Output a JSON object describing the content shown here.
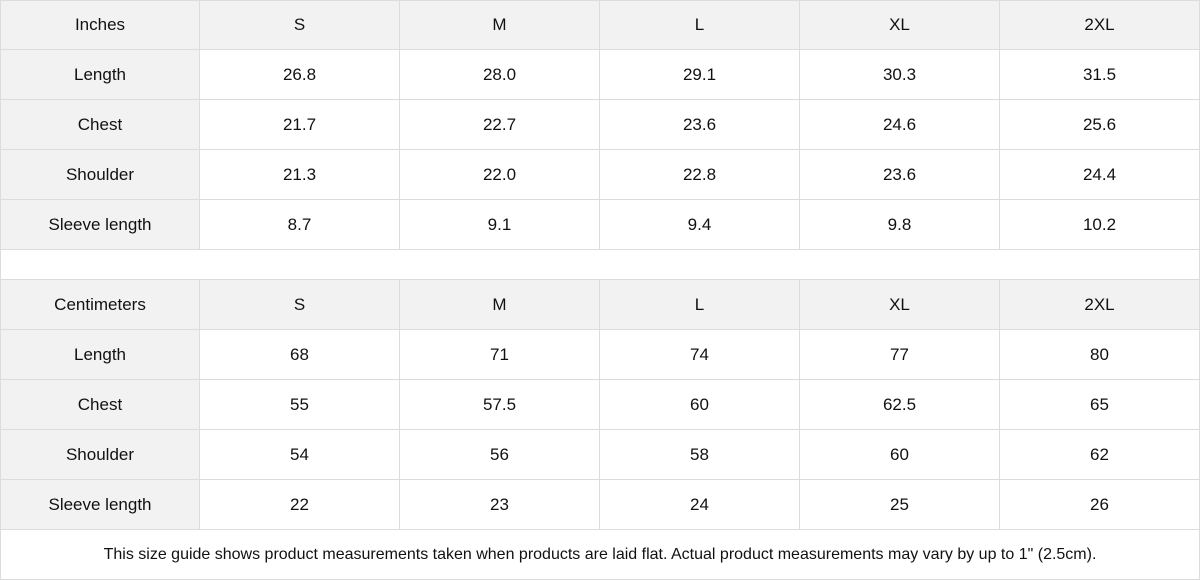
{
  "tables": [
    {
      "unit": "Inches",
      "sizes": [
        "S",
        "M",
        "L",
        "XL",
        "2XL"
      ],
      "rows": [
        {
          "label": "Length",
          "values": [
            "26.8",
            "28.0",
            "29.1",
            "30.3",
            "31.5"
          ]
        },
        {
          "label": "Chest",
          "values": [
            "21.7",
            "22.7",
            "23.6",
            "24.6",
            "25.6"
          ]
        },
        {
          "label": "Shoulder",
          "values": [
            "21.3",
            "22.0",
            "22.8",
            "23.6",
            "24.4"
          ]
        },
        {
          "label": "Sleeve length",
          "values": [
            "8.7",
            "9.1",
            "9.4",
            "9.8",
            "10.2"
          ]
        }
      ]
    },
    {
      "unit": "Centimeters",
      "sizes": [
        "S",
        "M",
        "L",
        "XL",
        "2XL"
      ],
      "rows": [
        {
          "label": "Length",
          "values": [
            "68",
            "71",
            "74",
            "77",
            "80"
          ]
        },
        {
          "label": "Chest",
          "values": [
            "55",
            "57.5",
            "60",
            "62.5",
            "65"
          ]
        },
        {
          "label": "Shoulder",
          "values": [
            "54",
            "56",
            "58",
            "60",
            "62"
          ]
        },
        {
          "label": "Sleeve length",
          "values": [
            "22",
            "23",
            "24",
            "25",
            "26"
          ]
        }
      ]
    }
  ],
  "note": "This size guide shows product measurements taken when products are laid flat.  Actual product measurements may vary by up to 1\" (2.5cm)."
}
